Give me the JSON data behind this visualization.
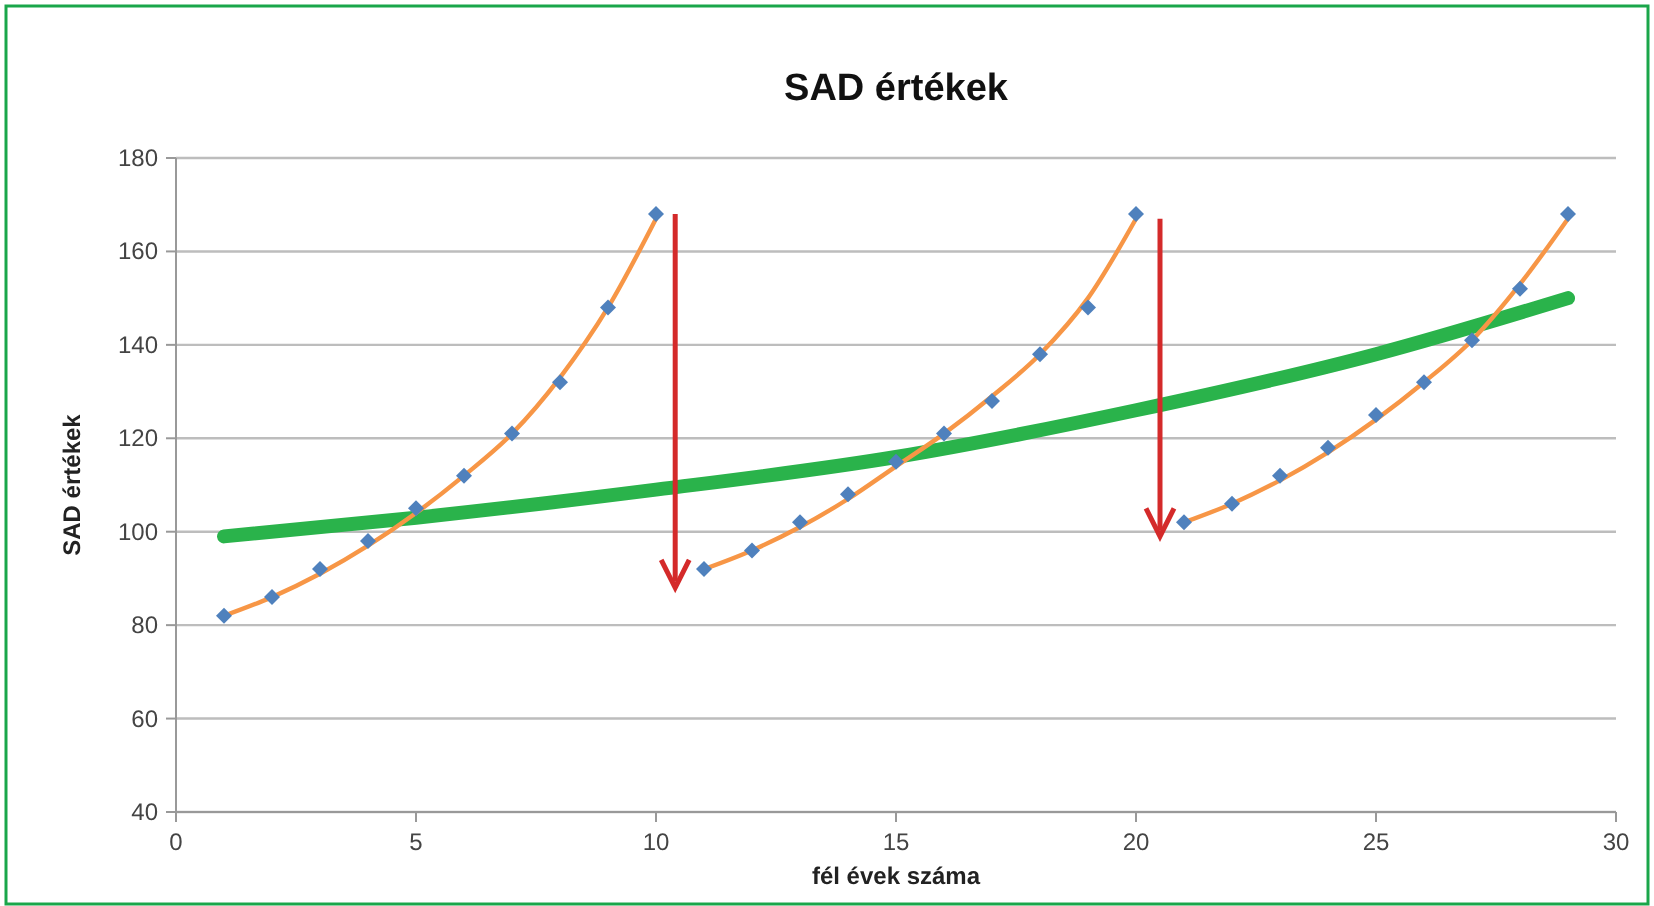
{
  "chart_data": {
    "type": "scatter",
    "title": "SAD értékek",
    "xlabel": "fél évek száma",
    "ylabel": "SAD értékek",
    "xlim": [
      0,
      30
    ],
    "xticks": [
      0,
      5,
      10,
      15,
      20,
      25,
      30
    ],
    "ylim": [
      40,
      180
    ],
    "yticks": [
      40,
      60,
      80,
      100,
      120,
      140,
      160,
      180
    ],
    "grid": "y",
    "series": [
      {
        "type": "line",
        "color": "#2ab34b",
        "marker": "none",
        "x": [
          1,
          5,
          10,
          15,
          20,
          25,
          29
        ],
        "values": [
          99,
          103,
          109,
          116,
          126,
          138,
          150
        ]
      },
      {
        "type": "line",
        "color": "#f79646",
        "marker": "none",
        "x": [
          1,
          2,
          3,
          4,
          5,
          6,
          7,
          8,
          9,
          10
        ],
        "values": [
          82,
          86,
          91,
          97,
          104,
          112,
          121,
          133,
          148,
          167
        ]
      },
      {
        "type": "line",
        "color": "#f79646",
        "marker": "none",
        "x": [
          11,
          12,
          13,
          14,
          15,
          16,
          17,
          18,
          19,
          20
        ],
        "values": [
          92,
          96,
          101,
          107,
          114,
          121,
          129,
          138,
          150,
          167
        ]
      },
      {
        "type": "line",
        "color": "#f79646",
        "marker": "none",
        "x": [
          21,
          22,
          23,
          24,
          25,
          26,
          27,
          28,
          29
        ],
        "values": [
          102,
          106,
          111,
          117,
          124,
          132,
          141,
          153,
          167
        ]
      },
      {
        "color": "#4f81bd",
        "marker": "diamond",
        "x": [
          1,
          2,
          3,
          4,
          5,
          6,
          7,
          8,
          9,
          10,
          11,
          12,
          13,
          14,
          15,
          16,
          17,
          18,
          19,
          20,
          21,
          22,
          23,
          24,
          25,
          26,
          27,
          28,
          29
        ],
        "values": [
          82,
          86,
          92,
          98,
          105,
          112,
          121,
          132,
          148,
          168,
          92,
          96,
          102,
          108,
          115,
          121,
          128,
          138,
          148,
          168,
          102,
          106,
          112,
          118,
          125,
          132,
          141,
          152,
          168
        ]
      }
    ]
  }
}
